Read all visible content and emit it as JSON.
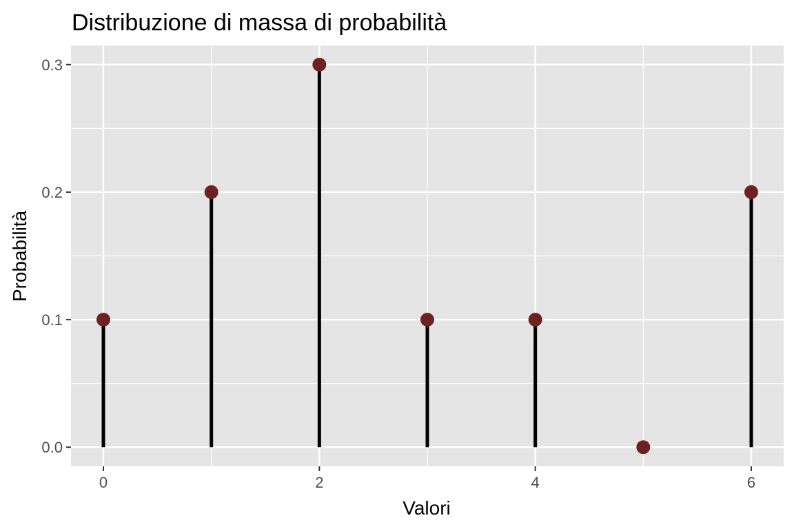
{
  "chart_data": {
    "type": "lollipop",
    "title": "Distribuzione di massa di probabilità",
    "xlabel": "Valori",
    "ylabel": "Probabilità",
    "x": [
      0,
      1,
      2,
      3,
      4,
      5,
      6
    ],
    "y": [
      0.1,
      0.2,
      0.3,
      0.1,
      0.1,
      0.0,
      0.2
    ],
    "xlim": [
      -0.3,
      6.3
    ],
    "ylim": [
      -0.015,
      0.315
    ],
    "x_ticks": [
      0,
      2,
      4,
      6
    ],
    "x_tick_labels": [
      "0",
      "2",
      "4",
      "6"
    ],
    "x_minor_ticks": [
      1,
      3,
      5
    ],
    "y_ticks": [
      0.0,
      0.1,
      0.2,
      0.3
    ],
    "y_tick_labels": [
      "0.0",
      "0.1",
      "0.2",
      "0.3"
    ],
    "y_minor_ticks": [
      0.05,
      0.15,
      0.25
    ],
    "grid": true,
    "legend": "none",
    "colors": {
      "panel_background": "#e5e5e5",
      "grid": "#ffffff",
      "stem": "#000000",
      "point": "#70201e",
      "tick_label": "#4d4d4d",
      "tick_mark": "#333333"
    }
  }
}
